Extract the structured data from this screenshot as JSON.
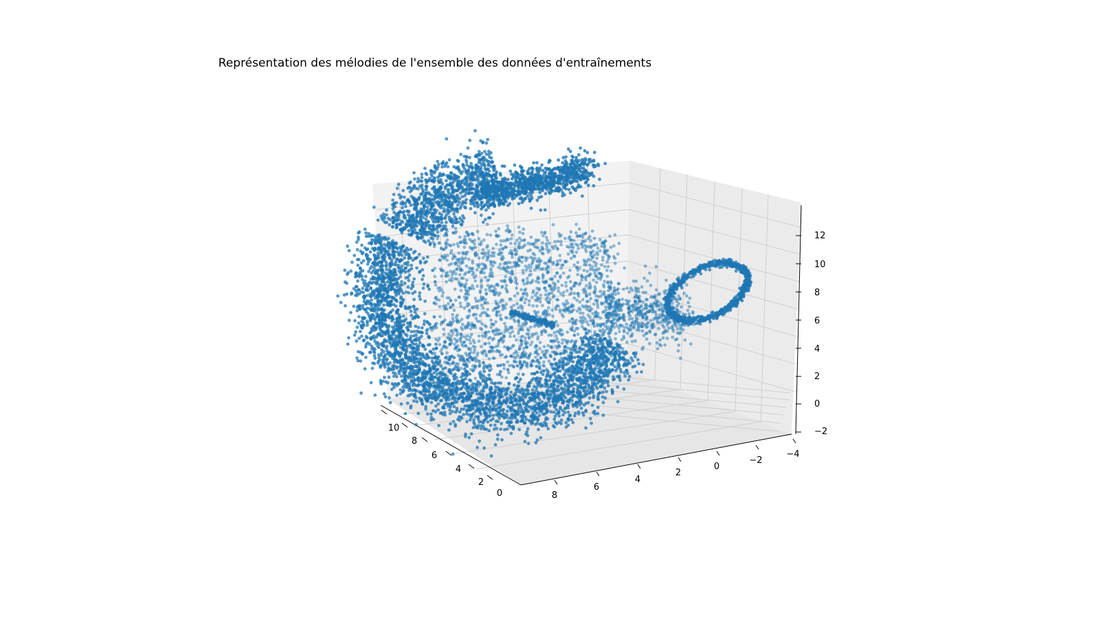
{
  "chart_data": {
    "type": "scatter",
    "projection": "3d",
    "title": "Représentation des mélodies de l'ensemble des données d'entraînements",
    "xlabel": "",
    "ylabel": "",
    "zlabel": "",
    "x_axis": {
      "ticks": [
        0,
        2,
        4,
        6,
        8,
        10
      ],
      "tick_labels": [
        "0",
        "2",
        "4",
        "6",
        "8",
        "10"
      ],
      "range": [
        -0.4,
        11.0
      ]
    },
    "y_axis": {
      "ticks": [
        8,
        6,
        4,
        2,
        0,
        -2,
        -4
      ],
      "tick_labels": [
        "8",
        "6",
        "4",
        "2",
        "0",
        "−2",
        "−4"
      ],
      "range": [
        -4.3,
        9.6
      ]
    },
    "z_axis": {
      "ticks": [
        -2,
        0,
        2,
        4,
        6,
        8,
        10,
        12
      ],
      "tick_labels": [
        "−2",
        "0",
        "2",
        "4",
        "6",
        "8",
        "10",
        "12"
      ],
      "range": [
        -2.2,
        13.8
      ]
    },
    "grid": true,
    "marker_color": "#1f77b4",
    "marker_alpha": 0.55,
    "point_count_approx": 9000,
    "clusters": [
      {
        "name": "",
        "shape": "thick curved sheet (arc)",
        "x_range": [
          2,
          10
        ],
        "y_range": [
          2,
          10
        ],
        "z_range": [
          -1,
          12
        ]
      },
      {
        "name": "",
        "shape": "inner scattered cloud",
        "x_range": [
          2,
          8
        ],
        "y_range": [
          0,
          8
        ],
        "z_range": [
          2,
          9
        ]
      },
      {
        "name": "",
        "shape": "thin closed loop",
        "x_range": [
          0,
          3
        ],
        "y_range": [
          -4,
          0
        ],
        "z_range": [
          5,
          10
        ]
      }
    ]
  }
}
